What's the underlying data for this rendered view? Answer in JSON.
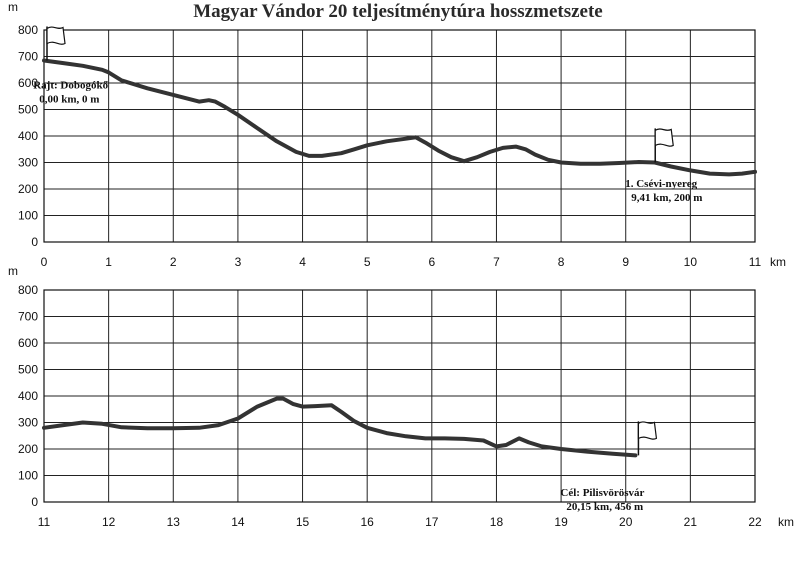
{
  "chart_data": [
    {
      "type": "line",
      "title": "Magyar Vándor 20 teljesítménytúra hosszmetszete",
      "ylabel": "m",
      "xlabel": "km",
      "xlim": [
        0,
        11
      ],
      "ylim": [
        0,
        800
      ],
      "xticks": [
        "0",
        "1",
        "2",
        "3",
        "4",
        "5",
        "6",
        "7",
        "8",
        "9",
        "10",
        "11"
      ],
      "yticks": [
        "0",
        "100",
        "200",
        "300",
        "400",
        "500",
        "600",
        "700",
        "800"
      ],
      "grid": true,
      "series": [
        {
          "x": [
            0,
            0.3,
            0.6,
            0.9,
            1.0,
            1.2,
            1.6,
            2.0,
            2.4,
            2.55,
            2.65,
            2.8,
            3.0,
            3.3,
            3.6,
            3.9,
            4.1,
            4.3,
            4.6,
            4.8,
            5.0,
            5.3,
            5.6,
            5.75,
            5.9,
            6.1,
            6.3,
            6.5,
            6.7,
            6.9,
            7.1,
            7.3,
            7.45,
            7.6,
            7.8,
            8.0,
            8.3,
            8.6,
            8.9,
            9.2,
            9.45,
            9.7,
            10.0,
            10.3,
            10.6,
            10.8,
            11.0
          ],
          "y": [
            685,
            675,
            665,
            650,
            640,
            610,
            580,
            555,
            530,
            535,
            530,
            510,
            480,
            430,
            380,
            340,
            325,
            325,
            335,
            350,
            365,
            380,
            390,
            395,
            375,
            345,
            320,
            305,
            320,
            340,
            355,
            360,
            350,
            330,
            310,
            300,
            295,
            295,
            298,
            302,
            300,
            285,
            270,
            258,
            255,
            258,
            265
          ]
        }
      ],
      "annotations": [
        {
          "lines": [
            "Rajt: Dobogókő",
            "0,00 km, 0 m"
          ],
          "x": 0.05,
          "y": 550
        },
        {
          "lines": [
            "1. Csévi-nyereg",
            "9,41 km, 200 m"
          ],
          "x": 9.41,
          "y": 305
        }
      ],
      "flags": [
        0,
        9.41
      ]
    },
    {
      "type": "line",
      "title": "",
      "ylabel": "m",
      "xlabel": "km",
      "xlim": [
        11,
        22
      ],
      "ylim": [
        0,
        800
      ],
      "xticks": [
        "11",
        "12",
        "13",
        "14",
        "15",
        "16",
        "17",
        "18",
        "19",
        "20",
        "21",
        "22"
      ],
      "yticks": [
        "0",
        "100",
        "200",
        "300",
        "400",
        "500",
        "600",
        "700",
        "800"
      ],
      "grid": true,
      "series": [
        {
          "x": [
            11,
            11.3,
            11.6,
            11.9,
            12.2,
            12.6,
            13.0,
            13.4,
            13.7,
            14.0,
            14.3,
            14.6,
            14.7,
            14.85,
            15.0,
            15.2,
            15.45,
            15.6,
            15.8,
            16.0,
            16.3,
            16.6,
            16.9,
            17.2,
            17.5,
            17.8,
            18.0,
            18.15,
            18.35,
            18.5,
            18.7,
            19.0,
            19.4,
            19.8,
            20.15
          ],
          "y": [
            280,
            290,
            300,
            295,
            282,
            278,
            278,
            280,
            290,
            315,
            360,
            390,
            390,
            370,
            360,
            362,
            365,
            340,
            305,
            280,
            260,
            248,
            240,
            240,
            238,
            232,
            210,
            215,
            240,
            225,
            210,
            200,
            190,
            182,
            176
          ]
        }
      ],
      "annotations": [
        {
          "lines": [
            "Cél: Pilisvörösvár",
            "20,15 km, 456 m"
          ],
          "x": 20.15,
          "y": 120
        }
      ],
      "flags": [
        20.15
      ]
    }
  ]
}
